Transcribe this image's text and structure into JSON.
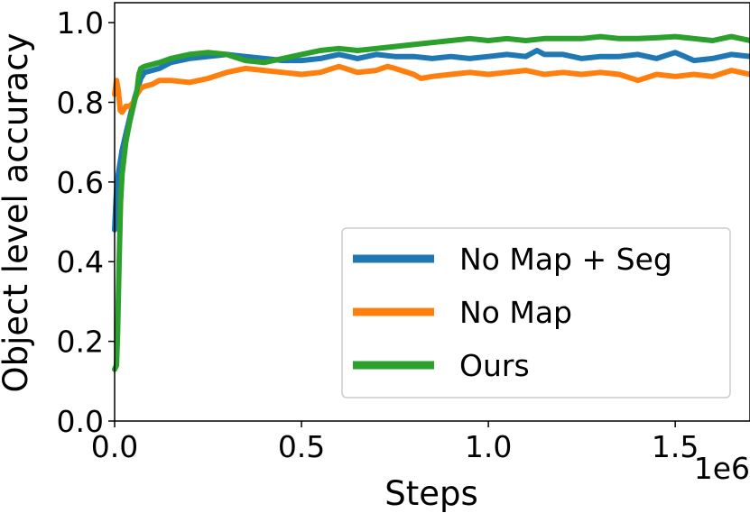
{
  "chart_data": {
    "type": "line",
    "xlabel": "Steps",
    "ylabel": "Object level accuracy",
    "x_offset_text": "1e6",
    "xlim": [
      0,
      1.7
    ],
    "ylim": [
      0,
      1.05
    ],
    "xticks": [
      0.0,
      0.5,
      1.0,
      1.5
    ],
    "xtick_labels": [
      "0.0",
      "0.5",
      "1.0",
      "1.5"
    ],
    "yticks": [
      0.0,
      0.2,
      0.4,
      0.6,
      0.8,
      1.0
    ],
    "ytick_labels": [
      "0.0",
      "0.2",
      "0.4",
      "0.6",
      "0.8",
      "1.0"
    ],
    "grid": false,
    "legend_position": "lower-right",
    "series": [
      {
        "name": "No Map + Seg",
        "color": "#1f77b4",
        "x": [
          0,
          0.005,
          0.01,
          0.02,
          0.03,
          0.04,
          0.05,
          0.06,
          0.07,
          0.08,
          0.1,
          0.12,
          0.15,
          0.2,
          0.25,
          0.3,
          0.35,
          0.4,
          0.45,
          0.5,
          0.55,
          0.6,
          0.65,
          0.7,
          0.75,
          0.8,
          0.85,
          0.9,
          0.95,
          1.0,
          1.05,
          1.1,
          1.13,
          1.15,
          1.2,
          1.25,
          1.3,
          1.35,
          1.4,
          1.45,
          1.5,
          1.55,
          1.6,
          1.65,
          1.7
        ],
        "y": [
          0.48,
          0.58,
          0.62,
          0.68,
          0.72,
          0.76,
          0.8,
          0.83,
          0.86,
          0.875,
          0.88,
          0.885,
          0.9,
          0.91,
          0.915,
          0.92,
          0.915,
          0.91,
          0.905,
          0.905,
          0.91,
          0.92,
          0.91,
          0.92,
          0.915,
          0.915,
          0.91,
          0.915,
          0.91,
          0.915,
          0.92,
          0.915,
          0.93,
          0.92,
          0.92,
          0.91,
          0.915,
          0.915,
          0.92,
          0.91,
          0.925,
          0.905,
          0.91,
          0.92,
          0.915
        ]
      },
      {
        "name": "No Map",
        "color": "#ff7f0e",
        "x": [
          0,
          0.005,
          0.01,
          0.015,
          0.02,
          0.03,
          0.04,
          0.05,
          0.06,
          0.07,
          0.08,
          0.1,
          0.12,
          0.15,
          0.2,
          0.25,
          0.3,
          0.35,
          0.4,
          0.45,
          0.5,
          0.55,
          0.6,
          0.65,
          0.7,
          0.73,
          0.75,
          0.8,
          0.82,
          0.85,
          0.9,
          0.95,
          1.0,
          1.05,
          1.1,
          1.15,
          1.2,
          1.25,
          1.3,
          1.35,
          1.4,
          1.45,
          1.5,
          1.55,
          1.6,
          1.65,
          1.7
        ],
        "y": [
          0.82,
          0.855,
          0.83,
          0.78,
          0.775,
          0.79,
          0.79,
          0.8,
          0.82,
          0.835,
          0.84,
          0.845,
          0.855,
          0.855,
          0.85,
          0.86,
          0.875,
          0.885,
          0.88,
          0.875,
          0.87,
          0.875,
          0.89,
          0.875,
          0.88,
          0.89,
          0.885,
          0.87,
          0.86,
          0.865,
          0.87,
          0.875,
          0.87,
          0.875,
          0.88,
          0.87,
          0.875,
          0.87,
          0.875,
          0.87,
          0.855,
          0.87,
          0.865,
          0.87,
          0.865,
          0.88,
          0.87
        ]
      },
      {
        "name": "Ours",
        "color": "#2ca02c",
        "x": [
          0,
          0.005,
          0.008,
          0.012,
          0.016,
          0.02,
          0.03,
          0.04,
          0.05,
          0.06,
          0.065,
          0.07,
          0.08,
          0.1,
          0.12,
          0.15,
          0.2,
          0.25,
          0.3,
          0.35,
          0.4,
          0.45,
          0.5,
          0.55,
          0.6,
          0.65,
          0.7,
          0.75,
          0.8,
          0.85,
          0.9,
          0.95,
          1.0,
          1.05,
          1.1,
          1.15,
          1.2,
          1.25,
          1.3,
          1.35,
          1.4,
          1.45,
          1.5,
          1.55,
          1.6,
          1.65,
          1.7
        ],
        "y": [
          0.13,
          0.14,
          0.22,
          0.4,
          0.55,
          0.62,
          0.7,
          0.75,
          0.79,
          0.83,
          0.87,
          0.885,
          0.89,
          0.895,
          0.9,
          0.91,
          0.92,
          0.925,
          0.92,
          0.905,
          0.9,
          0.91,
          0.92,
          0.93,
          0.935,
          0.93,
          0.935,
          0.94,
          0.945,
          0.95,
          0.955,
          0.96,
          0.955,
          0.96,
          0.955,
          0.96,
          0.96,
          0.96,
          0.965,
          0.96,
          0.96,
          0.962,
          0.965,
          0.96,
          0.955,
          0.965,
          0.955
        ]
      }
    ]
  }
}
